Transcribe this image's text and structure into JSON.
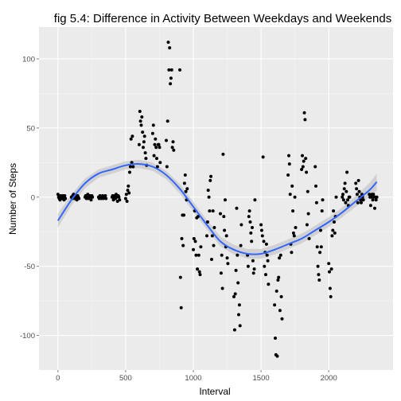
{
  "chart_data": {
    "type": "scatter",
    "title": "fig 5.4: Difference in Activity Between Weekdays and Weekends",
    "xlabel": "Interval",
    "ylabel": "Number of Steps",
    "xlim": [
      -140,
      2475
    ],
    "ylim": [
      -125,
      123
    ],
    "x_ticks": [
      0,
      500,
      1000,
      1500,
      2000
    ],
    "x_tick_labels": [
      "0",
      "500",
      "1000",
      "1500",
      "2000"
    ],
    "y_ticks": [
      -100,
      -50,
      0,
      50,
      100
    ],
    "y_tick_labels": [
      "-100",
      "-50",
      "0",
      "50",
      "100"
    ],
    "grid": true,
    "legend": "none",
    "colors": {
      "panel": "#ebebeb",
      "grid_major": "#ffffff",
      "grid_minor": "#f5f5f5",
      "points": "#000000",
      "smooth_line": "#3366ff",
      "confidence_band": "#c8c8c8"
    },
    "points": [
      [
        0,
        2
      ],
      [
        5,
        0
      ],
      [
        10,
        -1
      ],
      [
        15,
        -2
      ],
      [
        20,
        1
      ],
      [
        25,
        0
      ],
      [
        30,
        -1
      ],
      [
        35,
        1
      ],
      [
        40,
        0
      ],
      [
        45,
        -2
      ],
      [
        50,
        1
      ],
      [
        55,
        -1
      ],
      [
        100,
        0
      ],
      [
        105,
        -1
      ],
      [
        110,
        1
      ],
      [
        115,
        2
      ],
      [
        120,
        0
      ],
      [
        125,
        -1
      ],
      [
        130,
        1
      ],
      [
        135,
        0
      ],
      [
        140,
        -2
      ],
      [
        145,
        1
      ],
      [
        150,
        0
      ],
      [
        155,
        -1
      ],
      [
        200,
        0
      ],
      [
        205,
        1
      ],
      [
        210,
        -1
      ],
      [
        215,
        0
      ],
      [
        220,
        2
      ],
      [
        225,
        -1
      ],
      [
        230,
        0
      ],
      [
        235,
        1
      ],
      [
        240,
        0
      ],
      [
        245,
        -2
      ],
      [
        250,
        1
      ],
      [
        255,
        0
      ],
      [
        300,
        0
      ],
      [
        305,
        -1
      ],
      [
        310,
        1
      ],
      [
        315,
        0
      ],
      [
        320,
        -1
      ],
      [
        325,
        0
      ],
      [
        330,
        1
      ],
      [
        335,
        -1
      ],
      [
        340,
        0
      ],
      [
        345,
        0
      ],
      [
        350,
        1
      ],
      [
        355,
        -1
      ],
      [
        400,
        0
      ],
      [
        405,
        1
      ],
      [
        410,
        -2
      ],
      [
        415,
        0
      ],
      [
        420,
        1
      ],
      [
        425,
        -1
      ],
      [
        430,
        2
      ],
      [
        435,
        0
      ],
      [
        440,
        -3
      ],
      [
        445,
        1
      ],
      [
        450,
        0
      ],
      [
        455,
        -2
      ],
      [
        500,
        -1
      ],
      [
        505,
        2
      ],
      [
        510,
        -3
      ],
      [
        515,
        5
      ],
      [
        520,
        8
      ],
      [
        525,
        3
      ],
      [
        530,
        18
      ],
      [
        535,
        22
      ],
      [
        540,
        42
      ],
      [
        545,
        25
      ],
      [
        550,
        44
      ],
      [
        555,
        22
      ],
      [
        600,
        38
      ],
      [
        605,
        62
      ],
      [
        610,
        55
      ],
      [
        615,
        52
      ],
      [
        620,
        58
      ],
      [
        625,
        47
      ],
      [
        630,
        36
      ],
      [
        635,
        40
      ],
      [
        640,
        44
      ],
      [
        645,
        32
      ],
      [
        650,
        28
      ],
      [
        655,
        23
      ],
      [
        700,
        46
      ],
      [
        705,
        52
      ],
      [
        710,
        30
      ],
      [
        715,
        38
      ],
      [
        720,
        42
      ],
      [
        725,
        36
      ],
      [
        730,
        28
      ],
      [
        735,
        22
      ],
      [
        740,
        38
      ],
      [
        745,
        38
      ],
      [
        750,
        36
      ],
      [
        755,
        25
      ],
      [
        800,
        41
      ],
      [
        805,
        22
      ],
      [
        810,
        55
      ],
      [
        815,
        112
      ],
      [
        820,
        92
      ],
      [
        825,
        108
      ],
      [
        830,
        82
      ],
      [
        835,
        86
      ],
      [
        840,
        92
      ],
      [
        845,
        36
      ],
      [
        850,
        40
      ],
      [
        855,
        34
      ],
      [
        900,
        92
      ],
      [
        905,
        -58
      ],
      [
        910,
        -80
      ],
      [
        915,
        -30
      ],
      [
        920,
        -13
      ],
      [
        925,
        -35
      ],
      [
        930,
        -13
      ],
      [
        935,
        10
      ],
      [
        940,
        16
      ],
      [
        945,
        4
      ],
      [
        950,
        -2
      ],
      [
        955,
        6
      ],
      [
        1000,
        -38
      ],
      [
        1005,
        -30
      ],
      [
        1010,
        -10
      ],
      [
        1015,
        -32
      ],
      [
        1020,
        -42
      ],
      [
        1025,
        -15
      ],
      [
        1030,
        -52
      ],
      [
        1035,
        -14
      ],
      [
        1040,
        -42
      ],
      [
        1045,
        -54
      ],
      [
        1050,
        -56
      ],
      [
        1055,
        -36
      ],
      [
        1100,
        -28
      ],
      [
        1105,
        -18
      ],
      [
        1110,
        5
      ],
      [
        1115,
        0
      ],
      [
        1120,
        -10
      ],
      [
        1125,
        12
      ],
      [
        1130,
        15
      ],
      [
        1135,
        -45
      ],
      [
        1140,
        -28
      ],
      [
        1145,
        -10
      ],
      [
        1150,
        -35
      ],
      [
        1155,
        -22
      ],
      [
        1200,
        -12
      ],
      [
        1205,
        -55
      ],
      [
        1210,
        -42
      ],
      [
        1215,
        -66
      ],
      [
        1220,
        31
      ],
      [
        1225,
        -14
      ],
      [
        1230,
        -24
      ],
      [
        1235,
        -2
      ],
      [
        1240,
        -36
      ],
      [
        1245,
        -28
      ],
      [
        1250,
        -44
      ],
      [
        1255,
        -48
      ],
      [
        1300,
        -72
      ],
      [
        1305,
        -96
      ],
      [
        1310,
        -70
      ],
      [
        1315,
        -53
      ],
      [
        1320,
        -8
      ],
      [
        1325,
        -42
      ],
      [
        1330,
        -62
      ],
      [
        1335,
        -85
      ],
      [
        1340,
        -78
      ],
      [
        1345,
        -93
      ],
      [
        1350,
        -35
      ],
      [
        1355,
        -20
      ],
      [
        1400,
        -42
      ],
      [
        1405,
        -50
      ],
      [
        1410,
        -14
      ],
      [
        1415,
        -10
      ],
      [
        1420,
        -18
      ],
      [
        1425,
        -26
      ],
      [
        1430,
        -32
      ],
      [
        1435,
        -22
      ],
      [
        1440,
        -46
      ],
      [
        1445,
        -55
      ],
      [
        1450,
        -52
      ],
      [
        1455,
        -2
      ],
      [
        1500,
        -20
      ],
      [
        1505,
        -24
      ],
      [
        1510,
        -28
      ],
      [
        1515,
        29
      ],
      [
        1520,
        -32
      ],
      [
        1525,
        -50
      ],
      [
        1530,
        -40
      ],
      [
        1535,
        -56
      ],
      [
        1540,
        -34
      ],
      [
        1545,
        -42
      ],
      [
        1550,
        -46
      ],
      [
        1555,
        -63
      ],
      [
        1600,
        -78
      ],
      [
        1605,
        -102
      ],
      [
        1610,
        -114
      ],
      [
        1615,
        -68
      ],
      [
        1620,
        -115
      ],
      [
        1625,
        -60
      ],
      [
        1630,
        -58
      ],
      [
        1635,
        -44
      ],
      [
        1640,
        -82
      ],
      [
        1645,
        -42
      ],
      [
        1650,
        -72
      ],
      [
        1655,
        -88
      ],
      [
        1700,
        16
      ],
      [
        1705,
        30
      ],
      [
        1710,
        24
      ],
      [
        1715,
        2
      ],
      [
        1720,
        -34
      ],
      [
        1725,
        -40
      ],
      [
        1730,
        8
      ],
      [
        1735,
        -10
      ],
      [
        1740,
        -26
      ],
      [
        1745,
        -28
      ],
      [
        1750,
        0
      ],
      [
        1755,
        -22
      ],
      [
        1800,
        20
      ],
      [
        1805,
        30
      ],
      [
        1810,
        22
      ],
      [
        1815,
        26
      ],
      [
        1820,
        61
      ],
      [
        1825,
        56
      ],
      [
        1830,
        28
      ],
      [
        1835,
        18
      ],
      [
        1840,
        -20
      ],
      [
        1845,
        4
      ],
      [
        1850,
        -12
      ],
      [
        1855,
        -30
      ],
      [
        1900,
        22
      ],
      [
        1905,
        8
      ],
      [
        1910,
        -4
      ],
      [
        1915,
        -36
      ],
      [
        1920,
        -50
      ],
      [
        1925,
        -56
      ],
      [
        1930,
        -60
      ],
      [
        1935,
        -40
      ],
      [
        1940,
        -24
      ],
      [
        1945,
        -36
      ],
      [
        1950,
        -10
      ],
      [
        1955,
        -2
      ],
      [
        2000,
        -48
      ],
      [
        2005,
        -54
      ],
      [
        2010,
        -66
      ],
      [
        2015,
        -72
      ],
      [
        2020,
        -52
      ],
      [
        2025,
        -28
      ],
      [
        2030,
        -24
      ],
      [
        2035,
        -10
      ],
      [
        2040,
        -18
      ],
      [
        2045,
        -26
      ],
      [
        2050,
        -14
      ],
      [
        2055,
        0
      ],
      [
        2100,
        0
      ],
      [
        2105,
        2
      ],
      [
        2110,
        -2
      ],
      [
        2115,
        6
      ],
      [
        2120,
        10
      ],
      [
        2125,
        -4
      ],
      [
        2130,
        4
      ],
      [
        2135,
        18
      ],
      [
        2140,
        -2
      ],
      [
        2145,
        -6
      ],
      [
        2150,
        0
      ],
      [
        2155,
        0
      ],
      [
        2200,
        10
      ],
      [
        2205,
        6
      ],
      [
        2210,
        2
      ],
      [
        2215,
        -4
      ],
      [
        2220,
        12
      ],
      [
        2225,
        4
      ],
      [
        2230,
        0
      ],
      [
        2235,
        -2
      ],
      [
        2240,
        -4
      ],
      [
        2245,
        2
      ],
      [
        2250,
        0
      ],
      [
        2255,
        -2
      ],
      [
        2300,
        2
      ],
      [
        2305,
        0
      ],
      [
        2310,
        -6
      ],
      [
        2315,
        0
      ],
      [
        2320,
        2
      ],
      [
        2325,
        -2
      ],
      [
        2330,
        2
      ],
      [
        2335,
        0
      ],
      [
        2340,
        -8
      ],
      [
        2345,
        0
      ],
      [
        2350,
        -2
      ],
      [
        2355,
        0
      ]
    ],
    "smooth": [
      [
        0,
        -17
      ],
      [
        100,
        -2
      ],
      [
        200,
        10
      ],
      [
        300,
        17
      ],
      [
        400,
        20
      ],
      [
        500,
        23
      ],
      [
        600,
        24
      ],
      [
        700,
        22
      ],
      [
        800,
        16
      ],
      [
        900,
        6
      ],
      [
        1000,
        -7
      ],
      [
        1100,
        -20
      ],
      [
        1200,
        -32
      ],
      [
        1300,
        -38
      ],
      [
        1400,
        -41
      ],
      [
        1500,
        -41
      ],
      [
        1600,
        -38
      ],
      [
        1700,
        -34
      ],
      [
        1800,
        -30
      ],
      [
        1900,
        -24
      ],
      [
        2000,
        -18
      ],
      [
        2100,
        -11
      ],
      [
        2200,
        -3
      ],
      [
        2300,
        5
      ],
      [
        2355,
        11
      ]
    ],
    "band_halfwidth": [
      5,
      4,
      3.5,
      3,
      3,
      3,
      3,
      3,
      3,
      3.5,
      3.5,
      3.5,
      3.5,
      3.5,
      3.5,
      3.5,
      3.5,
      3.5,
      3.5,
      3.5,
      3.5,
      3.5,
      4,
      5,
      6
    ]
  }
}
